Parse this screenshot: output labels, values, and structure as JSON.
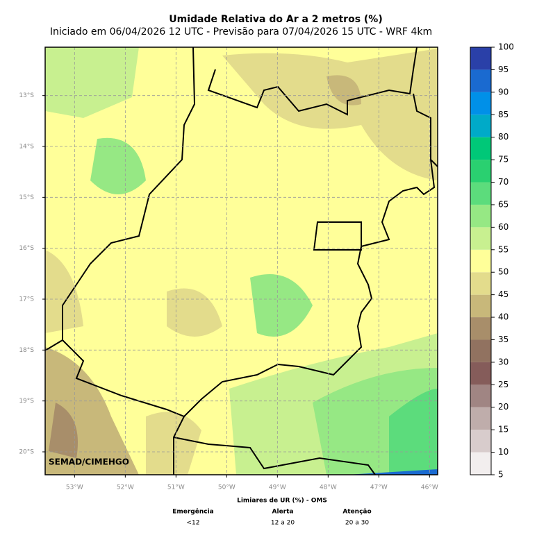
{
  "title": "Umidade Relativa do Ar a 2 metros (%)",
  "subtitle": "Iniciado em 06/04/2026 12 UTC - Previsão para 07/04/2026 15 UTC - WRF 4km",
  "map": {
    "lonlim": [
      -53.58,
      -45.84
    ],
    "latlim": [
      -20.45,
      -12.05
    ],
    "lonticks": [
      {
        "value": -53,
        "label": "53°W"
      },
      {
        "value": -52,
        "label": "52°W"
      },
      {
        "value": -51,
        "label": "51°W"
      },
      {
        "value": -50,
        "label": "50°W"
      },
      {
        "value": -49,
        "label": "49°W"
      },
      {
        "value": -48,
        "label": "48°W"
      },
      {
        "value": -47,
        "label": "47°W"
      },
      {
        "value": -46,
        "label": "46°W"
      }
    ],
    "latticks": [
      {
        "value": -13,
        "label": "13°S"
      },
      {
        "value": -14,
        "label": "14°S"
      },
      {
        "value": -15,
        "label": "15°S"
      },
      {
        "value": -16,
        "label": "16°S"
      },
      {
        "value": -17,
        "label": "17°S"
      },
      {
        "value": -18,
        "label": "18°S"
      },
      {
        "value": -19,
        "label": "19°S"
      },
      {
        "value": -20,
        "label": "20°S"
      }
    ],
    "credit": "SEMAD/CIMEHGO"
  },
  "colorbar": {
    "ticks": [
      5,
      10,
      15,
      20,
      25,
      30,
      35,
      40,
      45,
      50,
      55,
      60,
      65,
      70,
      75,
      80,
      85,
      90,
      95,
      100
    ],
    "colors": [
      "#f2eeee",
      "#d8cccc",
      "#bfadab",
      "#a08583",
      "#855c5a",
      "#917260",
      "#a88e6a",
      "#c8b87a",
      "#e3dc8c",
      "#ffff99",
      "#c8f090",
      "#96e884",
      "#5cdc7c",
      "#2ad070",
      "#00c878",
      "#00aac8",
      "#0090e8",
      "#1a6ad0",
      "#2a40a8"
    ]
  },
  "legend": {
    "title": "Limiares de UR (%) - OMS",
    "levels": [
      {
        "name": "Emergência",
        "range": "<12"
      },
      {
        "name": "Alerta",
        "range": "12 a 20"
      },
      {
        "name": "Atenção",
        "range": "20 a 30"
      }
    ]
  }
}
